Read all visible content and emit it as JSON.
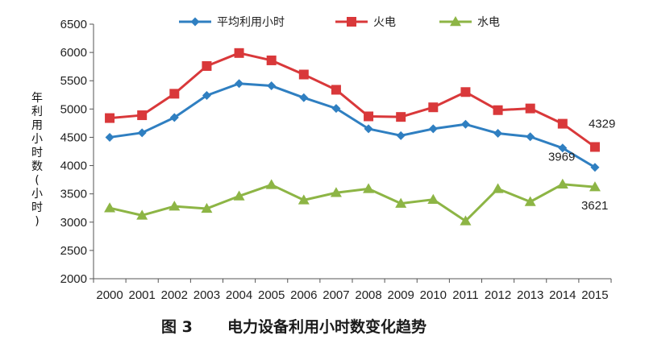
{
  "caption": {
    "figure_number": "图 3",
    "title": "电力设备利用小时数变化趋势"
  },
  "chart_data": {
    "type": "line",
    "title": "电力设备利用小时数变化趋势",
    "xlabel": "",
    "ylabel": "年利用小时数(小时)",
    "ylabel_chars": [
      "年",
      "利",
      "用",
      "小",
      "时",
      "数",
      "(",
      "小",
      "时",
      ")"
    ],
    "ylim": [
      2000,
      6500
    ],
    "yticks": [
      2000,
      2500,
      3000,
      3500,
      4000,
      4500,
      5000,
      5500,
      6000,
      6500
    ],
    "categories": [
      "2000",
      "2001",
      "2002",
      "2003",
      "2004",
      "2005",
      "2006",
      "2007",
      "2008",
      "2009",
      "2010",
      "2011",
      "2012",
      "2013",
      "2014",
      "2015"
    ],
    "series": [
      {
        "name": "平均利用小时",
        "color": "#2f7fc1",
        "marker": "diamond",
        "values": [
          4500,
          4580,
          4850,
          5240,
          5450,
          5410,
          5200,
          5010,
          4650,
          4530,
          4650,
          4730,
          4570,
          4510,
          4310,
          3969
        ]
      },
      {
        "name": "火电",
        "color": "#d9383a",
        "marker": "square",
        "values": [
          4840,
          4890,
          5270,
          5760,
          5990,
          5860,
          5610,
          5340,
          4870,
          4860,
          5030,
          5300,
          4980,
          5010,
          4740,
          4329
        ]
      },
      {
        "name": "水电",
        "color": "#8db545",
        "marker": "triangle",
        "values": [
          3250,
          3120,
          3280,
          3240,
          3460,
          3660,
          3390,
          3520,
          3590,
          3330,
          3400,
          3020,
          3590,
          3360,
          3670,
          3621
        ]
      }
    ],
    "annotations": [
      {
        "text": "4329",
        "series": "火电",
        "category": "2015"
      },
      {
        "text": "3969",
        "series": "平均利用小时",
        "category": "2015"
      },
      {
        "text": "3621",
        "series": "水电",
        "category": "2015"
      }
    ],
    "grid": false,
    "legend_position": "top"
  }
}
